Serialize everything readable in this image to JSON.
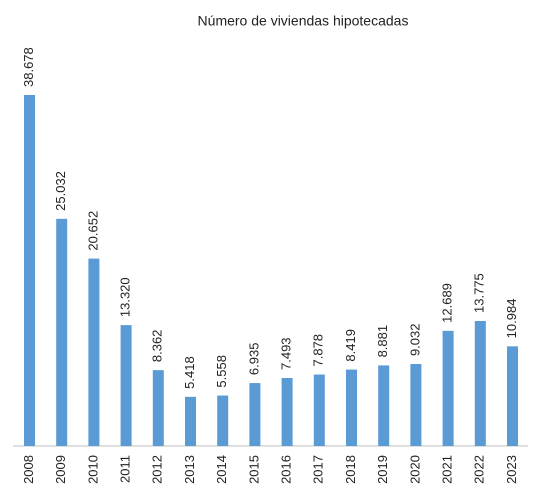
{
  "chart_data": {
    "type": "bar",
    "title": "Número de viviendas hipotecadas",
    "categories": [
      "2008",
      "2009",
      "2010",
      "2011",
      "2012",
      "2013",
      "2014",
      "2015",
      "2016",
      "2017",
      "2018",
      "2019",
      "2020",
      "2021",
      "2022",
      "2023"
    ],
    "values": [
      38678,
      25032,
      20652,
      13320,
      8362,
      5418,
      5558,
      6935,
      7493,
      7878,
      8419,
      8881,
      9032,
      12689,
      13775,
      10984
    ],
    "value_labels": [
      "38.678",
      "25.032",
      "20.652",
      "13.320",
      "8.362",
      "5.418",
      "5.558",
      "6.935",
      "7.493",
      "7.878",
      "8.419",
      "8.881",
      "9.032",
      "12.689",
      "13.775",
      "10.984"
    ],
    "color": "#5b9bd5"
  }
}
